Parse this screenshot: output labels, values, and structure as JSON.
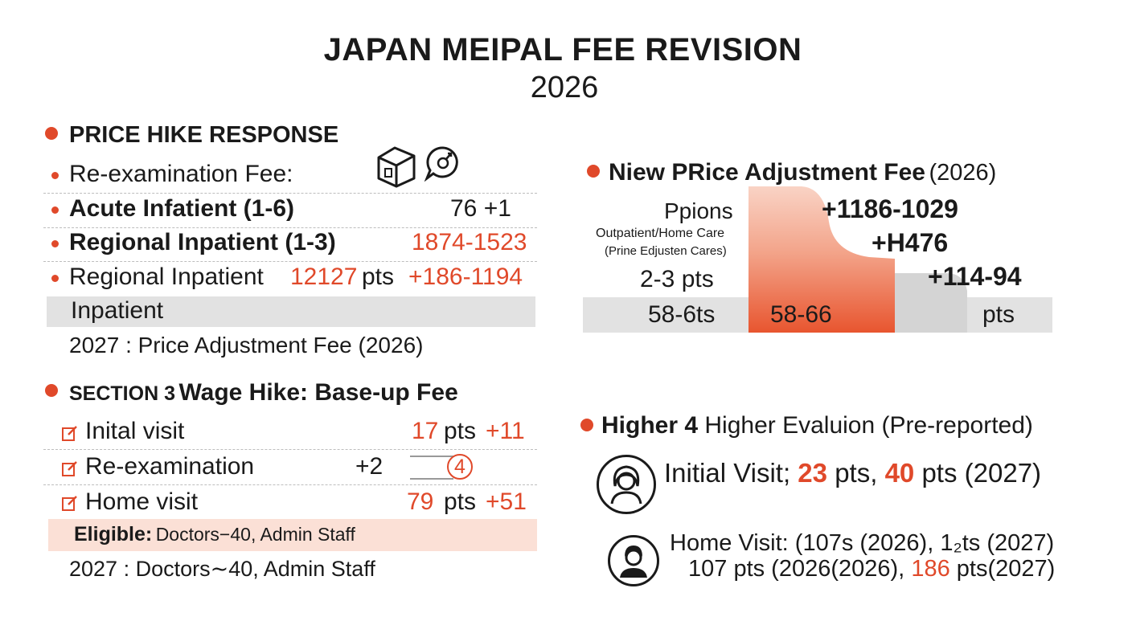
{
  "title": {
    "line1": "JAPAN MEIPAL FEE REVISION",
    "line2": "2026"
  },
  "price_hike": {
    "heading": "PRICE HIKE RESPONSE",
    "reexam_label": "Re-examination Fee:",
    "rows": [
      {
        "label": "Acute Infatient (1-6)",
        "value": "76 +1"
      },
      {
        "label": "Regional Inpatient (1-3)",
        "value": "1874-1523"
      },
      {
        "label": "Regional Inpatient",
        "pts_value": "12127",
        "pts_unit": "pts",
        "change": "+186-1194"
      }
    ],
    "band_label": "Inpatient",
    "note": "2027 : Price Adjustment Fee (2026)"
  },
  "section3": {
    "heading_small": "SECTION 3",
    "heading_rest": "Wage Hike: Base-up Fee",
    "rows": [
      {
        "label": "Inital visit",
        "pts": "17",
        "unit": "pts",
        "change": "+11"
      },
      {
        "label": "Re-examination",
        "change": "+2",
        "circle": "4"
      },
      {
        "label": "Home visit",
        "pts": "79",
        "unit": "pts",
        "change": "+51"
      }
    ],
    "eligible_label": "Eligible:",
    "eligible_text": "Doctors−40, Admin Staff",
    "note": "2027 : Doctors∼40, Admin Staff"
  },
  "adjustment": {
    "heading_bold": "Niew PRice Adjustment Fee",
    "heading_year": "(2026)",
    "ppions": "Ppions",
    "outpatient": "Outpatient/Home Care",
    "prine": "(Prine Edjusten Cares)",
    "pts_range": "2-3 pts",
    "step1": "+1186-1029",
    "step2": "+H476",
    "step3": "+114-94",
    "bar_left": "58-6ts",
    "bar_mid": "58-66",
    "bar_right": "pts"
  },
  "evaluation": {
    "heading_bold": "Higher 4",
    "heading_rest": "Higher Evalu",
    "heading_tail": "ion (Pre-reported)",
    "initial_prefix": "Initial Visit;",
    "initial_a": "23",
    "initial_mid": "pts,",
    "initial_b": "40",
    "initial_suffix": "pts (2027)",
    "home_line1": "Home Visit: (107s (2026), 1₂ts (2027)",
    "home_line2_prefix": "107 pts (2026(2026),",
    "home_line2_b": "186",
    "home_line2_suffix": "pts(2027)"
  },
  "colors": {
    "accent": "#e0492a",
    "peach": "#fbe0d6",
    "gray_band": "#e2e2e2"
  },
  "icons": [
    "box-icon",
    "bubble-icon",
    "edit-icon",
    "female-avatar-icon",
    "male-avatar-icon"
  ]
}
